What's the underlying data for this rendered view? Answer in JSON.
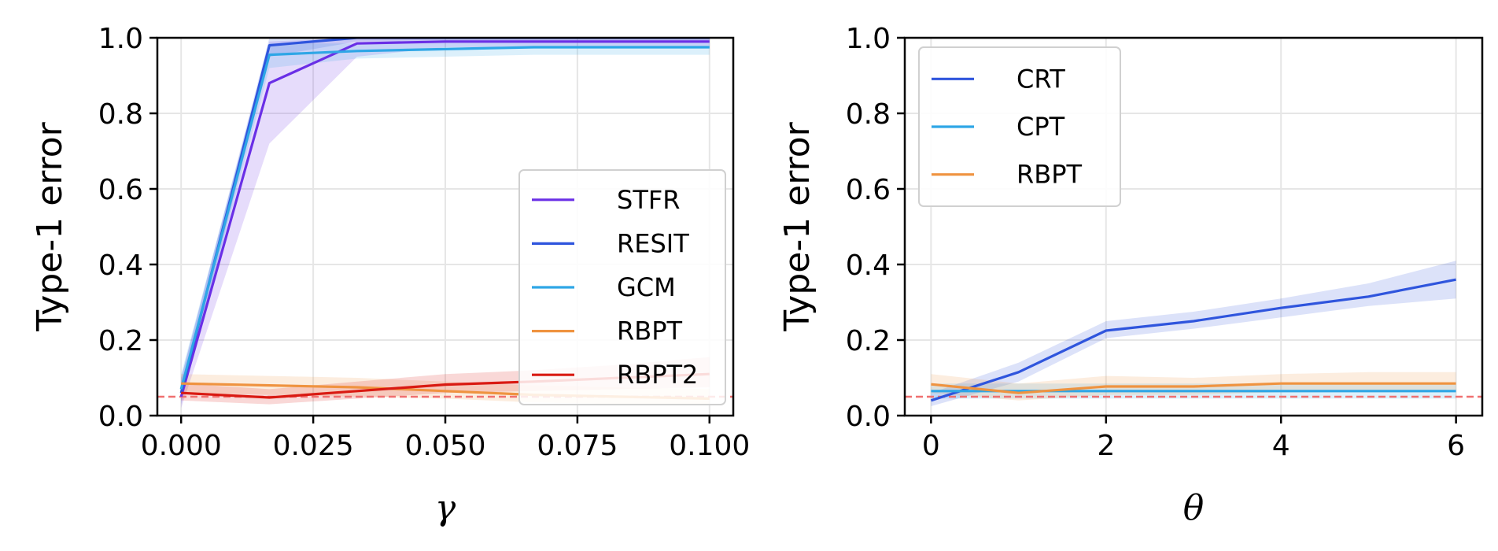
{
  "colors": {
    "STFR": "#6a2fe6",
    "RESIT": "#2f55dd",
    "GCM": "#2ea6e6",
    "RBPT": "#ef9340",
    "RBPT2": "#d91a12",
    "CRT": "#2f55dd",
    "CPT": "#2ea6e6",
    "reference_line": "#f07070"
  },
  "chart_data": [
    {
      "type": "line",
      "title": "",
      "xlabel": "γ",
      "ylabel": "Type-1 error",
      "xlim": [
        -0.0045,
        0.1045
      ],
      "ylim": [
        0.0,
        1.0
      ],
      "xticks": [
        0.0,
        0.025,
        0.05,
        0.075,
        0.1
      ],
      "xtick_labels": [
        "0.000",
        "0.025",
        "0.050",
        "0.075",
        "0.100"
      ],
      "yticks": [
        0.0,
        0.2,
        0.4,
        0.6,
        0.8,
        1.0
      ],
      "ytick_labels": [
        "0.0",
        "0.2",
        "0.4",
        "0.6",
        "0.8",
        "1.0"
      ],
      "grid": true,
      "legend_position": "lower-right",
      "reference_line": 0.05,
      "x": [
        0.0,
        0.0167,
        0.0333,
        0.05,
        0.0667,
        0.0833,
        0.1
      ],
      "series": [
        {
          "name": "STFR",
          "values": [
            0.05,
            0.88,
            0.985,
            0.99,
            0.99,
            0.99,
            0.99
          ],
          "lower": [
            0.02,
            0.72,
            0.95,
            0.975,
            0.975,
            0.975,
            0.975
          ],
          "upper": [
            0.1,
            0.99,
            1.0,
            1.0,
            1.0,
            1.0,
            1.0
          ]
        },
        {
          "name": "RESIT",
          "values": [
            0.06,
            0.98,
            1.0,
            1.0,
            1.0,
            1.0,
            1.0
          ],
          "lower": [
            0.03,
            0.95,
            0.99,
            0.99,
            0.99,
            0.99,
            0.99
          ],
          "upper": [
            0.1,
            1.0,
            1.0,
            1.0,
            1.0,
            1.0,
            1.0
          ]
        },
        {
          "name": "GCM",
          "values": [
            0.07,
            0.955,
            0.965,
            0.97,
            0.975,
            0.975,
            0.975
          ],
          "lower": [
            0.04,
            0.92,
            0.945,
            0.95,
            0.955,
            0.955,
            0.955
          ],
          "upper": [
            0.11,
            0.985,
            0.985,
            0.99,
            0.99,
            0.99,
            0.99
          ]
        },
        {
          "name": "RBPT",
          "values": [
            0.085,
            0.08,
            0.075,
            0.065,
            0.055,
            0.05,
            0.045
          ],
          "lower": [
            0.06,
            0.055,
            0.05,
            0.045,
            0.035,
            0.03,
            0.028
          ],
          "upper": [
            0.11,
            0.105,
            0.1,
            0.09,
            0.08,
            0.075,
            0.07
          ]
        },
        {
          "name": "RBPT2",
          "values": [
            0.06,
            0.048,
            0.065,
            0.082,
            0.09,
            0.1,
            0.11
          ],
          "lower": [
            0.04,
            0.03,
            0.045,
            0.06,
            0.065,
            0.07,
            0.075
          ],
          "upper": [
            0.085,
            0.07,
            0.09,
            0.11,
            0.12,
            0.135,
            0.155
          ]
        }
      ]
    },
    {
      "type": "line",
      "title": "",
      "xlabel": "θ",
      "ylabel": "Type-1 error",
      "xlim": [
        -0.3,
        6.3
      ],
      "ylim": [
        0.0,
        1.0
      ],
      "xticks": [
        0,
        2,
        4,
        6
      ],
      "xtick_labels": [
        "0",
        "2",
        "4",
        "6"
      ],
      "yticks": [
        0.0,
        0.2,
        0.4,
        0.6,
        0.8,
        1.0
      ],
      "ytick_labels": [
        "0.0",
        "0.2",
        "0.4",
        "0.6",
        "0.8",
        "1.0"
      ],
      "grid": true,
      "legend_position": "upper-left",
      "reference_line": 0.05,
      "x": [
        0,
        1,
        2,
        3,
        4,
        5,
        6
      ],
      "series": [
        {
          "name": "CRT",
          "values": [
            0.04,
            0.115,
            0.225,
            0.25,
            0.285,
            0.315,
            0.36
          ],
          "lower": [
            0.025,
            0.09,
            0.205,
            0.23,
            0.26,
            0.29,
            0.31
          ],
          "upper": [
            0.06,
            0.14,
            0.25,
            0.275,
            0.31,
            0.35,
            0.41
          ]
        },
        {
          "name": "CPT",
          "values": [
            0.065,
            0.065,
            0.065,
            0.065,
            0.065,
            0.065,
            0.065
          ],
          "lower": [
            0.045,
            0.045,
            0.045,
            0.045,
            0.045,
            0.045,
            0.045
          ],
          "upper": [
            0.085,
            0.085,
            0.085,
            0.085,
            0.085,
            0.085,
            0.085
          ]
        },
        {
          "name": "RBPT",
          "values": [
            0.083,
            0.06,
            0.077,
            0.077,
            0.085,
            0.085,
            0.085
          ],
          "lower": [
            0.06,
            0.04,
            0.055,
            0.055,
            0.062,
            0.062,
            0.062
          ],
          "upper": [
            0.11,
            0.085,
            0.105,
            0.1,
            0.11,
            0.115,
            0.115
          ]
        }
      ]
    }
  ]
}
